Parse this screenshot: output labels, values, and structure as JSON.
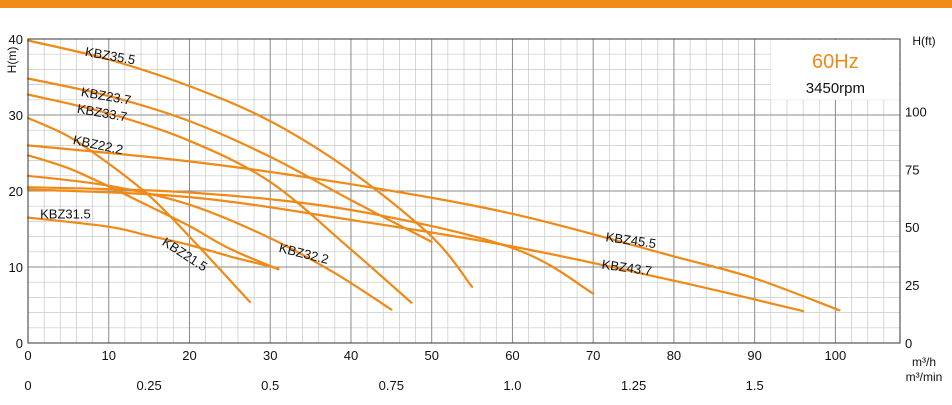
{
  "header_bar_color": "#ef8a17",
  "curve_color": "#ef8a17",
  "grid_color": "#9a9a9a",
  "info": {
    "frequency": "60Hz",
    "speed": "3450rpm",
    "frequency_color": "#ef8a17"
  },
  "chart_data": {
    "type": "line",
    "title": "",
    "xlabel_primary": "m³/h",
    "xlabel_secondary": "m³/min",
    "ylabel_left": "H(m)",
    "ylabel_right": "H(ft)",
    "xlim": [
      0,
      108
    ],
    "ylim": [
      0,
      40
    ],
    "grid": true,
    "x_ticks": [
      0,
      10,
      20,
      30,
      40,
      50,
      60,
      70,
      80,
      90,
      100
    ],
    "x_tick_labels": [
      "0",
      "10",
      "20",
      "30",
      "40",
      "50",
      "60",
      "70",
      "80",
      "90",
      "100"
    ],
    "x2_ticks": [
      0,
      15,
      30,
      45,
      60,
      75,
      90
    ],
    "x2_tick_labels": [
      "0",
      "0.25",
      "0.5",
      "0.75",
      "1.0",
      "1.25",
      "1.5"
    ],
    "y_ticks": [
      0,
      10,
      20,
      30,
      40
    ],
    "y_tick_labels": [
      "0",
      "10",
      "20",
      "30",
      "40"
    ],
    "y2_ticks": [
      0,
      7.62,
      15.24,
      22.86,
      30.48
    ],
    "y2_tick_labels": [
      "0",
      "25",
      "50",
      "75",
      "100"
    ],
    "series": [
      {
        "name": "KBZ35.5",
        "x": [
          0,
          10,
          20,
          30,
          40,
          50,
          55
        ],
        "y": [
          39.8,
          37.3,
          33.8,
          29.2,
          22.6,
          14,
          7.4
        ],
        "label_x": 7,
        "label_y": 37.8,
        "label_angle": 10
      },
      {
        "name": "KBZ23.7",
        "x": [
          0,
          10,
          20,
          30,
          40,
          50
        ],
        "y": [
          34.8,
          32.5,
          29.2,
          24.5,
          18.8,
          13.3
        ],
        "label_x": 6.5,
        "label_y": 32.5,
        "label_angle": 10
      },
      {
        "name": "KBZ33.7",
        "x": [
          0,
          10,
          20,
          30,
          40,
          47.5
        ],
        "y": [
          32.7,
          30.2,
          26.6,
          21.2,
          12.3,
          5.3
        ],
        "label_x": 6,
        "label_y": 30.3,
        "label_angle": 10
      },
      {
        "name": "KBZ22.2",
        "x": [
          0,
          5,
          10,
          15,
          20,
          27.5
        ],
        "y": [
          29.6,
          27.2,
          23.6,
          19.4,
          14,
          5.4
        ],
        "label_x": 5.5,
        "label_y": 26.2,
        "label_angle": 12
      },
      {
        "name": "KBZ21.5",
        "x": [
          0,
          5,
          10,
          15,
          20,
          25,
          31
        ],
        "y": [
          24.7,
          23,
          20.6,
          18,
          15.4,
          12.4,
          9.7
        ],
        "label_x": 16.5,
        "label_y": 13,
        "label_angle": 33
      },
      {
        "name": "KBZ32.2",
        "x": [
          0,
          10,
          20,
          30,
          38,
          45
        ],
        "y": [
          22,
          20.7,
          18.2,
          13.8,
          9.2,
          4.4
        ],
        "label_x": 31,
        "label_y": 12,
        "label_angle": 14
      },
      {
        "name": "KBZ31.5",
        "x": [
          0,
          10,
          15,
          20,
          25,
          31
        ],
        "y": [
          16.5,
          15.3,
          14.1,
          12.9,
          11.4,
          9.8
        ],
        "label_x": 1.5,
        "label_y": 16.4,
        "label_angle": 0
      },
      {
        "name": "KBZ45.5",
        "x": [
          0,
          20,
          40,
          60,
          80,
          90,
          100.5
        ],
        "y": [
          26,
          23.9,
          20.9,
          17,
          11.4,
          8.5,
          4.3
        ],
        "label_x": 71.5,
        "label_y": 13.4,
        "label_angle": 8
      },
      {
        "name": "KBZ43.7",
        "x": [
          0,
          20,
          40,
          60,
          80,
          96
        ],
        "y": [
          20.2,
          19.2,
          16.2,
          12.7,
          8.2,
          4.2
        ],
        "label_x": 71,
        "label_y": 9.8,
        "label_angle": 8
      },
      {
        "name": "",
        "x": [
          0,
          20,
          40,
          60,
          70
        ],
        "y": [
          20.5,
          19.8,
          17.5,
          12.5,
          6.5
        ],
        "label_x": null,
        "label_y": null,
        "label_angle": 0
      }
    ]
  }
}
